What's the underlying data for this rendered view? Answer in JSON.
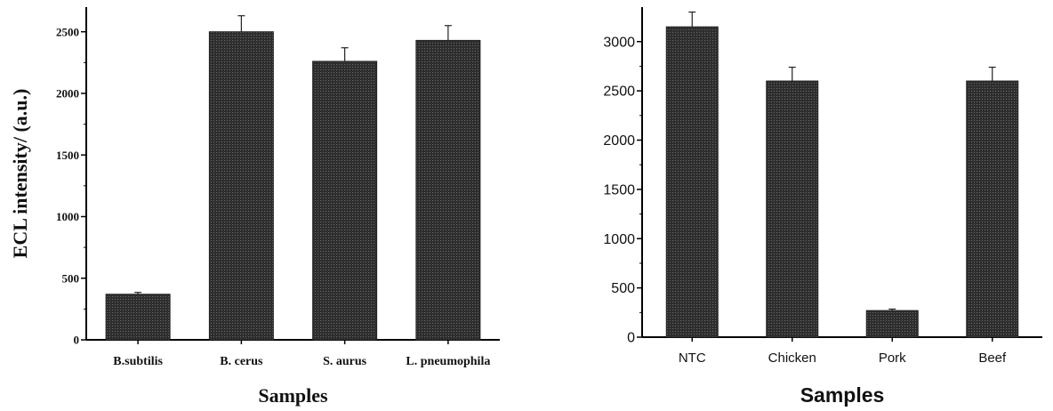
{
  "chart_data": [
    {
      "type": "bar",
      "title": "",
      "xlabel": "Samples",
      "ylabel": "ECL intensity/ (a.u.)",
      "categories": [
        "B.subtilis",
        "B. cerus",
        "S. aurus",
        "L. pneumophila"
      ],
      "values": [
        370,
        2500,
        2260,
        2430
      ],
      "errors": [
        15,
        130,
        110,
        120
      ],
      "yticks": [
        0,
        500,
        1000,
        1500,
        2000,
        2500
      ],
      "ylim": [
        0,
        2700
      ],
      "grid": false,
      "bar_color": "#3a3a3a"
    },
    {
      "type": "bar",
      "title": "",
      "xlabel": "Samples",
      "ylabel": "",
      "categories": [
        "NTC",
        "Chicken",
        "Pork",
        "Beef"
      ],
      "values": [
        3150,
        2600,
        270,
        2600
      ],
      "errors": [
        150,
        140,
        15,
        140
      ],
      "yticks": [
        0,
        500,
        1000,
        1500,
        2000,
        2500,
        3000
      ],
      "ylim": [
        0,
        3350
      ],
      "grid": false,
      "bar_color": "#3a3a3a"
    }
  ]
}
